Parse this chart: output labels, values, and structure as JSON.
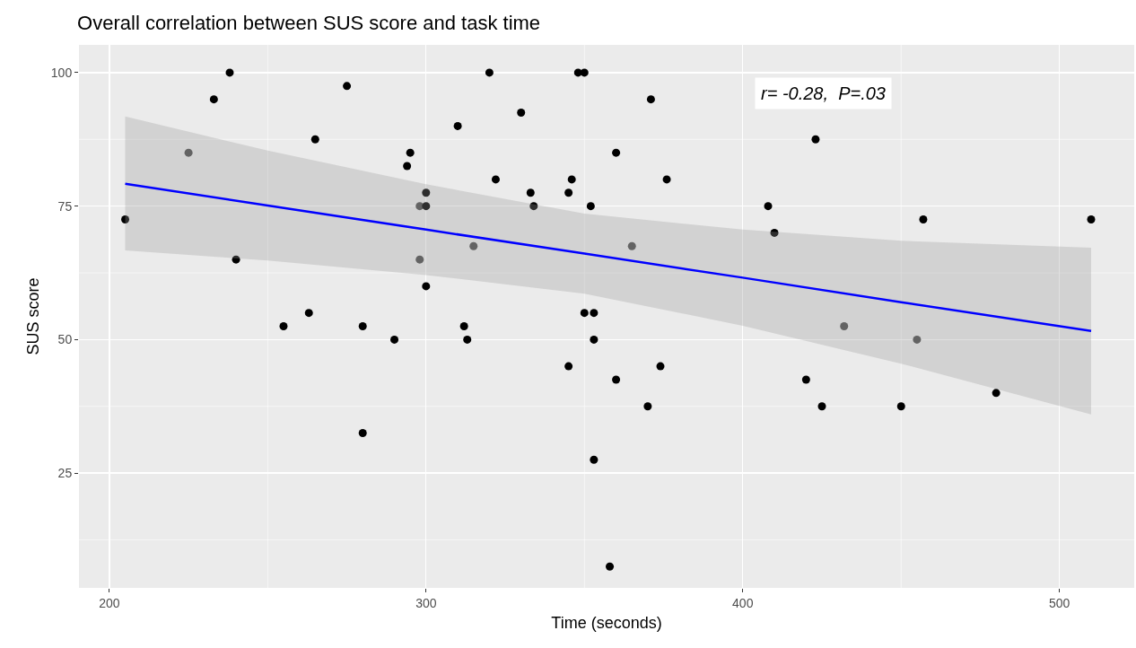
{
  "chart_data": {
    "type": "scatter",
    "title": "Overall correlation between SUS score and task time",
    "xlabel": "Time (seconds)",
    "ylabel": "SUS score",
    "xlim": [
      190.4,
      523.6
    ],
    "ylim": [
      3.5,
      105.2
    ],
    "xticks": [
      200,
      300,
      400,
      500
    ],
    "yticks": [
      25,
      50,
      75,
      100
    ],
    "grid": true,
    "marker": "circle",
    "annotations": [
      "r= -0.28,  P=.03"
    ],
    "series": [
      {
        "x": [
          205,
          225,
          233,
          238,
          240,
          255,
          263,
          265,
          275,
          280,
          280,
          290,
          294,
          295,
          298,
          298,
          300,
          300,
          300,
          310,
          312,
          313,
          315,
          320,
          322,
          330,
          333,
          334,
          345,
          345,
          346,
          348,
          350,
          350,
          352,
          353,
          353,
          353,
          358,
          360,
          360,
          365,
          370,
          371,
          374,
          376,
          408,
          410,
          420,
          423,
          425,
          432,
          450,
          455,
          457,
          480,
          510
        ],
        "values": [
          72.5,
          85,
          95,
          100,
          65,
          52.5,
          55,
          87.5,
          97.5,
          52.5,
          32.5,
          50,
          82.5,
          85,
          75,
          65,
          75,
          77.5,
          60,
          90,
          52.5,
          50,
          67.5,
          100,
          80,
          92.5,
          77.5,
          75,
          77.5,
          45,
          80,
          100,
          100,
          55,
          75,
          55,
          50,
          27.5,
          7.5,
          85,
          42.5,
          67.5,
          37.5,
          95,
          45,
          80,
          75,
          70,
          42.5,
          87.5,
          37.5,
          52.5,
          37.5,
          50,
          72.5,
          40,
          72.5
        ],
        "colors": [
          "#000000",
          "#4d4d4d",
          "#000000",
          "#000000",
          "#000000",
          "#000000",
          "#000000",
          "#000000",
          "#000000",
          "#000000",
          "#000000",
          "#000000",
          "#000000",
          "#000000",
          "#4d4d4d",
          "#4d4d4d",
          "#000000",
          "#000000",
          "#000000",
          "#000000",
          "#000000",
          "#000000",
          "#4d4d4d",
          "#000000",
          "#000000",
          "#000000",
          "#000000",
          "#000000",
          "#000000",
          "#000000",
          "#000000",
          "#000000",
          "#000000",
          "#000000",
          "#000000",
          "#000000",
          "#000000",
          "#000000",
          "#000000",
          "#000000",
          "#000000",
          "#4d4d4d",
          "#000000",
          "#000000",
          "#000000",
          "#000000",
          "#000000",
          "#000000",
          "#000000",
          "#000000",
          "#000000",
          "#4d4d4d",
          "#000000",
          "#4d4d4d",
          "#000000",
          "#000000",
          "#000000"
        ]
      },
      {
        "type": "line",
        "color": "#0000ff",
        "marker": "none",
        "x": [
          205,
          250,
          300,
          350,
          400,
          450,
          510
        ],
        "values": [
          79.2,
          75.1,
          70.6,
          66.1,
          61.6,
          57,
          51.6
        ],
        "lower": [
          66.7,
          64.8,
          62.1,
          58.6,
          52.6,
          45.5,
          36
        ],
        "upper": [
          91.8,
          85.4,
          79.1,
          73.6,
          70.6,
          68.5,
          67.2
        ]
      }
    ]
  }
}
